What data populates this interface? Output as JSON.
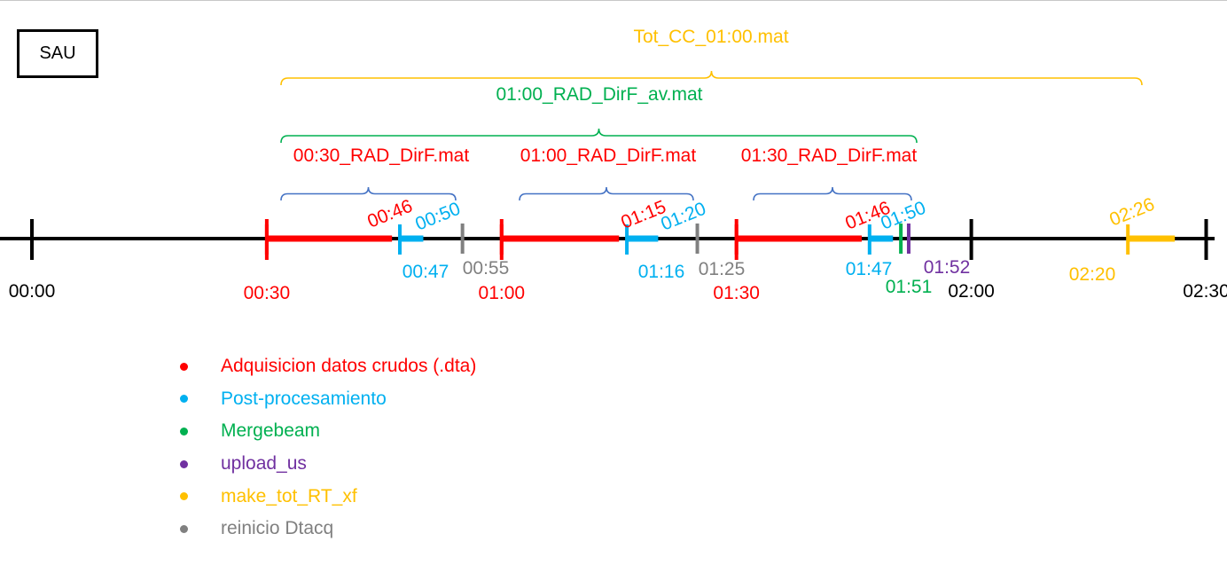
{
  "box_label": "SAU",
  "colors": {
    "red": "#ff0000",
    "cyan": "#00b0f0",
    "gray": "#808080",
    "green": "#00b050",
    "purple": "#7030a0",
    "yellow": "#ffc000",
    "black": "#000000",
    "blue": "#4472c4"
  },
  "axis_ticks": [
    {
      "label": "00:00",
      "color": "black"
    },
    {
      "label": "00:30",
      "color": "red"
    },
    {
      "label": "01:00",
      "color": "red"
    },
    {
      "label": "01:30",
      "color": "red"
    },
    {
      "label": "02:00",
      "color": "black"
    },
    {
      "label": "02:30",
      "color": "black"
    }
  ],
  "segments": [
    {
      "type": "red",
      "start": "00:30",
      "end": "00:46"
    },
    {
      "type": "cyan",
      "start": "00:47",
      "end": "00:50"
    },
    {
      "type": "red",
      "start": "01:00",
      "end": "01:15"
    },
    {
      "type": "cyan",
      "start": "01:16",
      "end": "01:20"
    },
    {
      "type": "red",
      "start": "01:30",
      "end": "01:46"
    },
    {
      "type": "cyan",
      "start": "01:47",
      "end": "01:50"
    },
    {
      "type": "yellow",
      "start": "02:20",
      "end": "02:26"
    }
  ],
  "events": [
    {
      "type": "gray",
      "time": "00:55"
    },
    {
      "type": "gray",
      "time": "01:25"
    },
    {
      "type": "green",
      "time": "01:51"
    },
    {
      "type": "purple",
      "time": "01:52"
    }
  ],
  "time_labels": [
    {
      "text": "00:46",
      "color": "red"
    },
    {
      "text": "00:50",
      "color": "cyan"
    },
    {
      "text": "01:15",
      "color": "red"
    },
    {
      "text": "01:20",
      "color": "cyan"
    },
    {
      "text": "01:46",
      "color": "red"
    },
    {
      "text": "01:50",
      "color": "cyan"
    },
    {
      "text": "02:26",
      "color": "yellow"
    },
    {
      "text": "00:47",
      "color": "cyan"
    },
    {
      "text": "00:55",
      "color": "gray"
    },
    {
      "text": "01:16",
      "color": "cyan"
    },
    {
      "text": "01:25",
      "color": "gray"
    },
    {
      "text": "01:47",
      "color": "cyan"
    },
    {
      "text": "01:52",
      "color": "purple"
    },
    {
      "text": "01:51",
      "color": "green"
    },
    {
      "text": "02:20",
      "color": "yellow"
    }
  ],
  "braces": [
    {
      "label": "Tot_CC_01:00.mat",
      "color": "yellow"
    },
    {
      "label": "01:00_RAD_DirF_av.mat",
      "color": "green"
    },
    {
      "label": "00:30_RAD_DirF.mat",
      "color": "blue",
      "label_color": "red"
    },
    {
      "label": "01:00_RAD_DirF.mat",
      "color": "blue",
      "label_color": "red"
    },
    {
      "label": "01:30_RAD_DirF.mat",
      "color": "blue",
      "label_color": "red"
    }
  ],
  "legend": [
    {
      "label": "Adquisicion datos crudos (.dta)",
      "color": "red"
    },
    {
      "label": "Post-procesamiento",
      "color": "cyan"
    },
    {
      "label": "Mergebeam",
      "color": "green"
    },
    {
      "label": "upload_us",
      "color": "purple"
    },
    {
      "label": "make_tot_RT_xf",
      "color": "yellow"
    },
    {
      "label": "reinicio Dtacq",
      "color": "gray"
    }
  ]
}
